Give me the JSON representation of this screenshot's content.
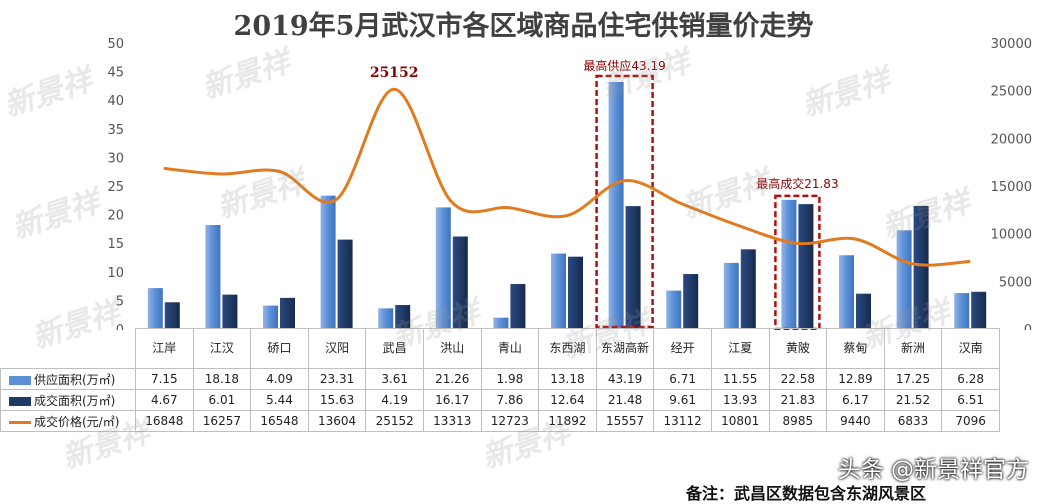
{
  "title": "2019年5月武汉市各区域商品住宅供销量价走势",
  "colors": {
    "supply": "#5b8fd6",
    "supply_gradient_light": "#8fb4e6",
    "deal": "#1f3864",
    "price": "#e07b20",
    "highlight_box": "#b01010",
    "axis_text": "#555555",
    "annotation": "#8b0000"
  },
  "chart_data": {
    "type": "bar",
    "categories": [
      "江岸",
      "江汉",
      "硚口",
      "汉阳",
      "武昌",
      "洪山",
      "青山",
      "东西湖",
      "东湖高新",
      "经开",
      "江夏",
      "黄陂",
      "蔡甸",
      "新洲",
      "汉南"
    ],
    "series": [
      {
        "name": "供应面积(万㎡)",
        "kind": "bar",
        "axis": "left",
        "values": [
          7.15,
          18.18,
          4.09,
          23.31,
          3.61,
          21.26,
          1.98,
          13.18,
          43.19,
          6.71,
          11.55,
          22.58,
          12.89,
          17.25,
          6.28
        ]
      },
      {
        "name": "成交面积(万㎡)",
        "kind": "bar",
        "axis": "left",
        "values": [
          4.67,
          6.01,
          5.44,
          15.63,
          4.19,
          16.17,
          7.86,
          12.64,
          21.48,
          9.61,
          13.93,
          21.83,
          6.17,
          21.52,
          6.51
        ]
      },
      {
        "name": "成交价格(元/㎡)",
        "kind": "line",
        "axis": "right",
        "values": [
          16848,
          16257,
          16548,
          13604,
          25152,
          13313,
          12723,
          11892,
          15557,
          13112,
          10801,
          8985,
          9440,
          6833,
          7096
        ]
      }
    ],
    "y_left": {
      "min": 0,
      "max": 50,
      "ticks": [
        "0",
        "5",
        "10",
        "15",
        "20",
        "25",
        "30",
        "35",
        "40",
        "45",
        "50"
      ]
    },
    "y_right": {
      "min": 0,
      "max": 30000,
      "ticks": [
        "0",
        "5000",
        "10000",
        "15000",
        "20000",
        "25000",
        "30000"
      ]
    },
    "annotations": [
      {
        "text": "25152",
        "category_index": 4,
        "series": "price"
      },
      {
        "text": "最高供应43.19",
        "category_index": 8,
        "series": "supply"
      },
      {
        "text": "最高成交21.83",
        "category_index": 11,
        "series": "deal"
      }
    ],
    "grid": false,
    "legend": "data-table-left"
  },
  "table": {
    "rows": [
      {
        "label": "供应面积(万㎡)",
        "values": [
          "7.15",
          "18.18",
          "4.09",
          "23.31",
          "3.61",
          "21.26",
          "1.98",
          "13.18",
          "43.19",
          "6.71",
          "11.55",
          "22.58",
          "12.89",
          "17.25",
          "6.28"
        ]
      },
      {
        "label": "成交面积(万㎡)",
        "values": [
          "4.67",
          "6.01",
          "5.44",
          "15.63",
          "4.19",
          "16.17",
          "7.86",
          "12.64",
          "21.48",
          "9.61",
          "13.93",
          "21.83",
          "6.17",
          "21.52",
          "6.51"
        ]
      },
      {
        "label": "成交价格(元/㎡)",
        "values": [
          "16848",
          "16257",
          "16548",
          "13604",
          "25152",
          "13313",
          "12723",
          "11892",
          "15557",
          "13112",
          "10801",
          "8985",
          "9440",
          "6833",
          "7096"
        ]
      }
    ]
  },
  "watermark": {
    "text": "新景祥",
    "author": "头条 @新景祥官方"
  },
  "footnote": "备注：武昌区数据包含东湖风景区"
}
